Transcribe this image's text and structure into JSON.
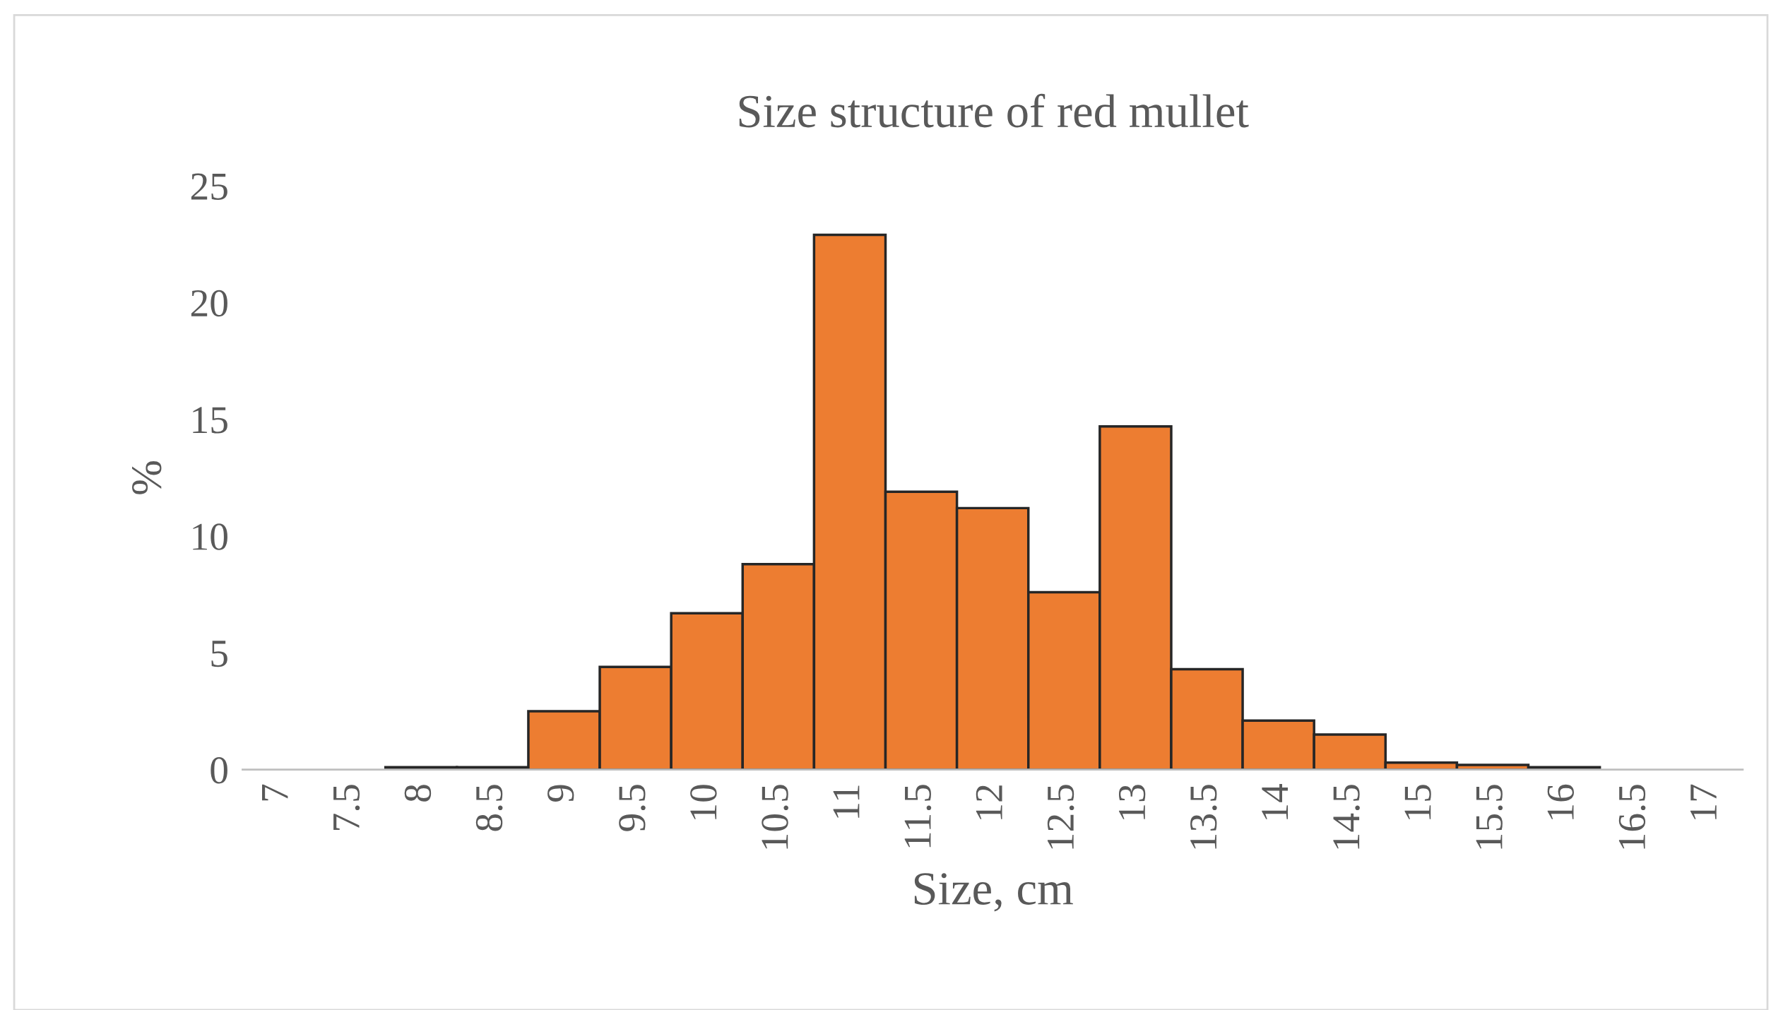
{
  "chart_data": {
    "type": "bar",
    "title": "Size structure of red mullet",
    "xlabel": "Size, cm",
    "ylabel": "%",
    "categories": [
      "7",
      "7.5",
      "8",
      "8.5",
      "9",
      "9.5",
      "10",
      "10.5",
      "11",
      "11.5",
      "12",
      "12.5",
      "13",
      "13.5",
      "14",
      "14.5",
      "15",
      "15.5",
      "16",
      "16.5",
      "17"
    ],
    "series": [
      {
        "color": "#ed7d31",
        "values": [
          0,
          0,
          0.1,
          0.1,
          2.5,
          4.4,
          6.7,
          8.8,
          22.9,
          11.9,
          11.2,
          7.6,
          14.7,
          4.3,
          2.1,
          1.5,
          0.3,
          0.2,
          0.1,
          0,
          0
        ]
      }
    ],
    "ylim": [
      0,
      25
    ],
    "yticks": [
      0,
      5,
      10,
      15,
      20,
      25
    ],
    "grid": false,
    "legend": false
  }
}
